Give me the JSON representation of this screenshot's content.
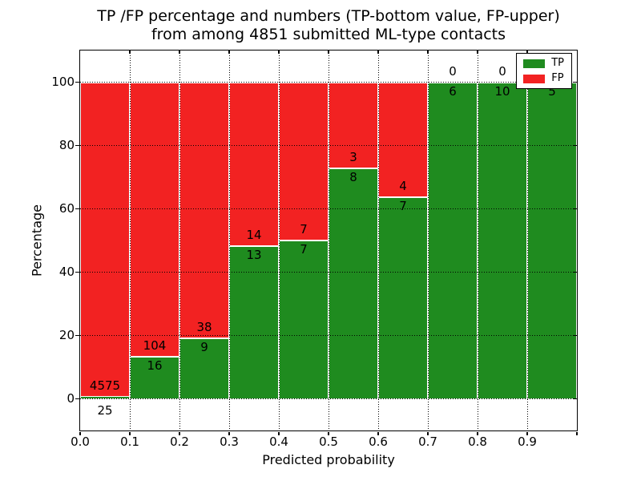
{
  "title": {
    "line1": "TP /FP percentage and numbers (TP-bottom value, FP-upper)",
    "line2": "from among 4851 submitted ML-type contacts"
  },
  "chart_data": {
    "type": "bar",
    "subtype": "stacked_percentage_histogram",
    "title": "TP /FP percentage and numbers (TP-bottom value, FP-upper)\nfrom among 4851 submitted ML-type contacts",
    "xlabel": "Predicted probability",
    "ylabel": "Percentage",
    "total_contacts": 4851,
    "x_tick_labels": [
      "0.0",
      "0.1",
      "0.2",
      "0.3",
      "0.4",
      "0.5",
      "0.6",
      "0.7",
      "0.8",
      "0.9"
    ],
    "y_ticks": [
      0,
      20,
      40,
      60,
      80,
      100
    ],
    "y_tick_labels": [
      "0",
      "20",
      "40",
      "60",
      "80",
      "100"
    ],
    "xlim": [
      0.0,
      1.0
    ],
    "ylim": [
      -10,
      110
    ],
    "grid": true,
    "legend_position": "upper right",
    "colors": {
      "tp": "#1f8b1f",
      "fp": "#f22222"
    },
    "legend": [
      {
        "label": "TP",
        "color": "#1f8b1f"
      },
      {
        "label": "FP",
        "color": "#f22222"
      }
    ],
    "series": [
      {
        "name": "TP",
        "color": "#1f8b1f",
        "values": [
          25,
          16,
          9,
          13,
          7,
          8,
          7,
          6,
          10,
          5
        ]
      },
      {
        "name": "FP",
        "color": "#f22222",
        "values": [
          4575,
          104,
          38,
          14,
          7,
          3,
          4,
          0,
          0,
          0
        ]
      }
    ],
    "bins": [
      {
        "x_start": 0.0,
        "x_end": 0.1,
        "tp": 25,
        "fp": 4575,
        "tp_pct": 0.54,
        "fp_pct": 99.46
      },
      {
        "x_start": 0.1,
        "x_end": 0.2,
        "tp": 16,
        "fp": 104,
        "tp_pct": 13.33,
        "fp_pct": 86.67
      },
      {
        "x_start": 0.2,
        "x_end": 0.3,
        "tp": 9,
        "fp": 38,
        "tp_pct": 19.15,
        "fp_pct": 80.85
      },
      {
        "x_start": 0.3,
        "x_end": 0.4,
        "tp": 13,
        "fp": 14,
        "tp_pct": 48.15,
        "fp_pct": 51.85
      },
      {
        "x_start": 0.4,
        "x_end": 0.5,
        "tp": 7,
        "fp": 7,
        "tp_pct": 50.0,
        "fp_pct": 50.0
      },
      {
        "x_start": 0.5,
        "x_end": 0.6,
        "tp": 8,
        "fp": 3,
        "tp_pct": 72.73,
        "fp_pct": 27.27
      },
      {
        "x_start": 0.6,
        "x_end": 0.7,
        "tp": 7,
        "fp": 4,
        "tp_pct": 63.64,
        "fp_pct": 36.36
      },
      {
        "x_start": 0.7,
        "x_end": 0.8,
        "tp": 6,
        "fp": 0,
        "tp_pct": 100.0,
        "fp_pct": 0.0
      },
      {
        "x_start": 0.8,
        "x_end": 0.9,
        "tp": 10,
        "fp": 0,
        "tp_pct": 100.0,
        "fp_pct": 0.0
      },
      {
        "x_start": 0.9,
        "x_end": 1.0,
        "tp": 5,
        "fp": 0,
        "tp_pct": 100.0,
        "fp_pct": 0.0
      }
    ]
  }
}
